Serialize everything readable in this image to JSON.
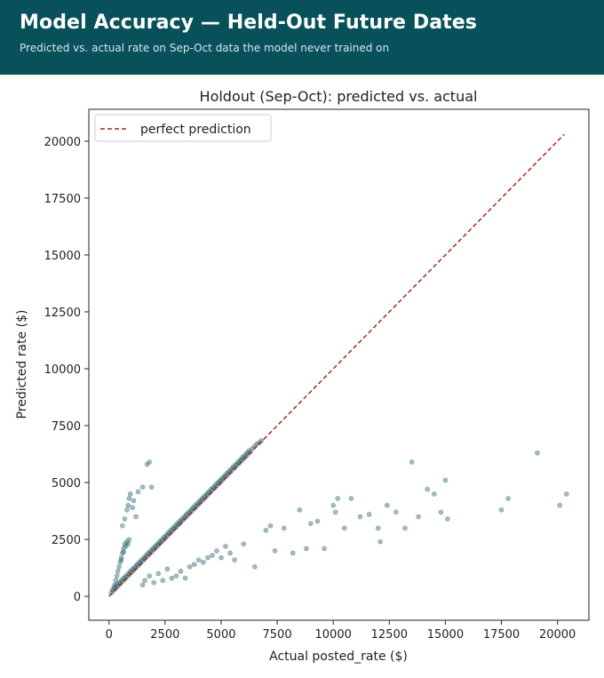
{
  "header": {
    "title": "Model Accuracy — Held-Out Future Dates",
    "subtitle": "Predicted vs. actual rate on Sep-Oct data the model never trained on"
  },
  "chart_data": {
    "type": "scatter",
    "title": "Holdout (Sep-Oct): predicted vs. actual",
    "xlabel": "Actual posted_rate ($)",
    "ylabel": "Predicted rate ($)",
    "xlim": [
      -900,
      21400
    ],
    "ylim": [
      -1050,
      21400
    ],
    "xticks": [
      0,
      2500,
      5000,
      7500,
      10000,
      12500,
      15000,
      17500,
      20000
    ],
    "yticks": [
      0,
      2500,
      5000,
      7500,
      10000,
      12500,
      15000,
      17500,
      20000
    ],
    "grid": false,
    "legend": {
      "position": "top-left",
      "entries": [
        {
          "label": "perfect prediction",
          "style": "dashed",
          "color": "#a52a1a"
        }
      ]
    },
    "reference_line": {
      "from": [
        0,
        0
      ],
      "to": [
        20300,
        20300
      ],
      "color": "#a52a1a",
      "style": "dashed"
    },
    "point_color": "#2e6a73",
    "series": [
      {
        "points": [
          [
            100,
            150
          ],
          [
            150,
            300
          ],
          [
            200,
            250
          ],
          [
            250,
            400
          ],
          [
            300,
            350
          ],
          [
            350,
            500
          ],
          [
            400,
            450
          ],
          [
            450,
            600
          ],
          [
            500,
            550
          ],
          [
            550,
            700
          ],
          [
            600,
            650
          ],
          [
            650,
            800
          ],
          [
            700,
            750
          ],
          [
            750,
            900
          ],
          [
            800,
            850
          ],
          [
            850,
            1000
          ],
          [
            900,
            950
          ],
          [
            950,
            1100
          ],
          [
            1000,
            1050
          ],
          [
            1050,
            1200
          ],
          [
            1100,
            1150
          ],
          [
            1150,
            1300
          ],
          [
            1200,
            1250
          ],
          [
            1250,
            1400
          ],
          [
            1300,
            1350
          ],
          [
            1350,
            1500
          ],
          [
            1400,
            1450
          ],
          [
            1450,
            1600
          ],
          [
            1500,
            1550
          ],
          [
            1550,
            1700
          ],
          [
            1600,
            1650
          ],
          [
            1650,
            1800
          ],
          [
            1700,
            1750
          ],
          [
            1750,
            1900
          ],
          [
            1800,
            1850
          ],
          [
            1850,
            2000
          ],
          [
            1900,
            1950
          ],
          [
            1950,
            2100
          ],
          [
            2000,
            2050
          ],
          [
            2050,
            2200
          ],
          [
            2100,
            2150
          ],
          [
            2150,
            2300
          ],
          [
            2200,
            2250
          ],
          [
            2250,
            2400
          ],
          [
            2300,
            2350
          ],
          [
            2350,
            2500
          ],
          [
            2400,
            2450
          ],
          [
            2450,
            2600
          ],
          [
            2500,
            2550
          ],
          [
            2550,
            2700
          ],
          [
            2600,
            2650
          ],
          [
            2650,
            2800
          ],
          [
            2700,
            2750
          ],
          [
            2750,
            2900
          ],
          [
            2800,
            2850
          ],
          [
            2850,
            3000
          ],
          [
            2900,
            2950
          ],
          [
            2950,
            3100
          ],
          [
            3000,
            3050
          ],
          [
            3050,
            3200
          ],
          [
            3100,
            3150
          ],
          [
            3150,
            3300
          ],
          [
            3200,
            3250
          ],
          [
            3250,
            3400
          ],
          [
            3300,
            3350
          ],
          [
            3350,
            3500
          ],
          [
            3400,
            3450
          ],
          [
            3450,
            3600
          ],
          [
            3500,
            3550
          ],
          [
            3550,
            3700
          ],
          [
            3600,
            3650
          ],
          [
            3650,
            3800
          ],
          [
            3700,
            3750
          ],
          [
            3750,
            3900
          ],
          [
            3800,
            3850
          ],
          [
            3850,
            4000
          ],
          [
            3900,
            3950
          ],
          [
            3950,
            4100
          ],
          [
            4000,
            4050
          ],
          [
            4050,
            4200
          ],
          [
            4100,
            4150
          ],
          [
            4150,
            4300
          ],
          [
            4200,
            4250
          ],
          [
            4250,
            4400
          ],
          [
            4300,
            4350
          ],
          [
            4350,
            4500
          ],
          [
            4400,
            4450
          ],
          [
            4450,
            4600
          ],
          [
            4500,
            4550
          ],
          [
            4550,
            4700
          ],
          [
            4600,
            4650
          ],
          [
            4650,
            4800
          ],
          [
            4700,
            4750
          ],
          [
            4750,
            4900
          ],
          [
            4800,
            4850
          ],
          [
            4850,
            5000
          ],
          [
            4900,
            4950
          ],
          [
            4950,
            5100
          ],
          [
            5000,
            5050
          ],
          [
            5050,
            5200
          ],
          [
            5100,
            5150
          ],
          [
            5150,
            5300
          ],
          [
            5200,
            5250
          ],
          [
            5250,
            5400
          ],
          [
            5300,
            5350
          ],
          [
            5350,
            5500
          ],
          [
            5400,
            5450
          ],
          [
            5450,
            5600
          ],
          [
            5500,
            5550
          ],
          [
            5550,
            5700
          ],
          [
            5600,
            5650
          ],
          [
            5650,
            5800
          ],
          [
            5700,
            5750
          ],
          [
            5750,
            5900
          ],
          [
            5800,
            5850
          ],
          [
            5850,
            6000
          ],
          [
            5900,
            5950
          ],
          [
            5950,
            6100
          ],
          [
            6000,
            6050
          ],
          [
            6050,
            6200
          ],
          [
            6100,
            6150
          ],
          [
            6150,
            6300
          ],
          [
            6200,
            6250
          ],
          [
            6250,
            6400
          ],
          [
            6300,
            6350
          ],
          [
            6400,
            6500
          ],
          [
            6500,
            6600
          ],
          [
            6600,
            6700
          ],
          [
            6700,
            6750
          ],
          [
            6800,
            6850
          ],
          [
            250,
            500
          ],
          [
            300,
            700
          ],
          [
            350,
            900
          ],
          [
            400,
            1100
          ],
          [
            450,
            1300
          ],
          [
            500,
            1500
          ],
          [
            550,
            1700
          ],
          [
            600,
            1900
          ],
          [
            650,
            2100
          ],
          [
            700,
            2300
          ],
          [
            750,
            2200
          ],
          [
            800,
            2400
          ],
          [
            850,
            2300
          ],
          [
            900,
            2500
          ],
          [
            600,
            3100
          ],
          [
            700,
            3400
          ],
          [
            800,
            3800
          ],
          [
            850,
            4000
          ],
          [
            900,
            4300
          ],
          [
            950,
            4500
          ],
          [
            1100,
            4200
          ],
          [
            1300,
            4600
          ],
          [
            1500,
            4800
          ],
          [
            1700,
            5800
          ],
          [
            1800,
            5900
          ],
          [
            1900,
            4800
          ],
          [
            550,
            1600
          ],
          [
            650,
            1950
          ],
          [
            1050,
            3900
          ],
          [
            1200,
            3500
          ],
          [
            1500,
            500
          ],
          [
            1600,
            700
          ],
          [
            1800,
            900
          ],
          [
            2000,
            600
          ],
          [
            2200,
            1000
          ],
          [
            2400,
            700
          ],
          [
            2600,
            1200
          ],
          [
            2800,
            800
          ],
          [
            3000,
            900
          ],
          [
            3200,
            1100
          ],
          [
            3400,
            800
          ],
          [
            3600,
            1300
          ],
          [
            3800,
            1400
          ],
          [
            4000,
            1600
          ],
          [
            4200,
            1500
          ],
          [
            4400,
            1700
          ],
          [
            4600,
            1800
          ],
          [
            4800,
            2000
          ],
          [
            5000,
            1700
          ],
          [
            5200,
            2200
          ],
          [
            5400,
            1900
          ],
          [
            5600,
            1600
          ],
          [
            6000,
            2300
          ],
          [
            6500,
            1300
          ],
          [
            7000,
            2900
          ],
          [
            7200,
            3100
          ],
          [
            7400,
            2000
          ],
          [
            7800,
            3000
          ],
          [
            8200,
            1900
          ],
          [
            8500,
            3800
          ],
          [
            9000,
            3200
          ],
          [
            9300,
            3300
          ],
          [
            9600,
            2100
          ],
          [
            10000,
            4000
          ],
          [
            10200,
            4300
          ],
          [
            10500,
            3000
          ],
          [
            10800,
            4300
          ],
          [
            11200,
            3500
          ],
          [
            11600,
            3600
          ],
          [
            12000,
            3000
          ],
          [
            12400,
            4000
          ],
          [
            12800,
            3700
          ],
          [
            13200,
            3000
          ],
          [
            13500,
            5900
          ],
          [
            13800,
            3500
          ],
          [
            14200,
            4700
          ],
          [
            14500,
            4500
          ],
          [
            14800,
            3700
          ],
          [
            15000,
            5100
          ],
          [
            15100,
            3400
          ],
          [
            17500,
            3800
          ],
          [
            17800,
            4300
          ],
          [
            19100,
            6300
          ],
          [
            20100,
            4000
          ],
          [
            20400,
            4500
          ],
          [
            12100,
            2400
          ],
          [
            8800,
            2100
          ],
          [
            10100,
            3700
          ]
        ]
      }
    ]
  }
}
